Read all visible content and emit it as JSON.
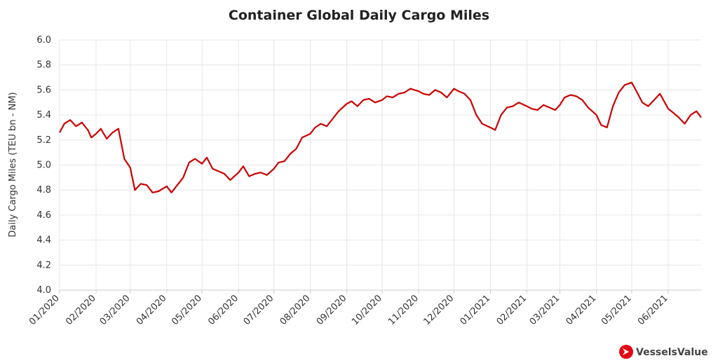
{
  "chart_data": {
    "type": "line",
    "title": "Container Global Daily Cargo Miles",
    "ylabel": "Daily Cargo Miles (TEU bn - NM)",
    "xlabel": "",
    "ylim": [
      4.0,
      6.0
    ],
    "yticks": [
      "4.0",
      "4.2",
      "4.4",
      "4.6",
      "4.8",
      "5.0",
      "5.2",
      "5.4",
      "5.6",
      "5.8",
      "6.0"
    ],
    "x_tick_labels": [
      "01/2020",
      "02/2020",
      "03/2020",
      "04/2020",
      "05/2020",
      "06/2020",
      "07/2020",
      "08/2020",
      "09/2020",
      "10/2020",
      "11/2020",
      "12/2020",
      "01/2021",
      "02/2021",
      "03/2021",
      "04/2021",
      "05/2021",
      "06/2021"
    ],
    "grid": true,
    "legend": "none",
    "line_color": "#cc0000",
    "series": [
      {
        "x": [
          "2020-01-01",
          "2020-01-05",
          "2020-01-10",
          "2020-01-15",
          "2020-01-20",
          "2020-01-25",
          "2020-01-28",
          "2020-02-01",
          "2020-02-05",
          "2020-02-10",
          "2020-02-15",
          "2020-02-20",
          "2020-02-25",
          "2020-03-01",
          "2020-03-05",
          "2020-03-10",
          "2020-03-15",
          "2020-03-20",
          "2020-03-25",
          "2020-04-01",
          "2020-04-05",
          "2020-04-10",
          "2020-04-15",
          "2020-04-20",
          "2020-04-25",
          "2020-05-01",
          "2020-05-05",
          "2020-05-10",
          "2020-05-15",
          "2020-05-20",
          "2020-05-25",
          "2020-06-01",
          "2020-06-05",
          "2020-06-10",
          "2020-06-15",
          "2020-06-20",
          "2020-06-25",
          "2020-07-01",
          "2020-07-05",
          "2020-07-10",
          "2020-07-15",
          "2020-07-20",
          "2020-07-25",
          "2020-08-01",
          "2020-08-05",
          "2020-08-10",
          "2020-08-15",
          "2020-08-20",
          "2020-08-25",
          "2020-09-01",
          "2020-09-05",
          "2020-09-10",
          "2020-09-15",
          "2020-09-20",
          "2020-09-25",
          "2020-10-01",
          "2020-10-05",
          "2020-10-10",
          "2020-10-15",
          "2020-10-20",
          "2020-10-25",
          "2020-11-01",
          "2020-11-05",
          "2020-11-10",
          "2020-11-15",
          "2020-11-20",
          "2020-11-25",
          "2020-12-01",
          "2020-12-05",
          "2020-12-10",
          "2020-12-15",
          "2020-12-20",
          "2020-12-25",
          "2021-01-01",
          "2021-01-05",
          "2021-01-10",
          "2021-01-15",
          "2021-01-20",
          "2021-01-25",
          "2021-02-01",
          "2021-02-05",
          "2021-02-10",
          "2021-02-15",
          "2021-02-20",
          "2021-02-25",
          "2021-03-01",
          "2021-03-05",
          "2021-03-10",
          "2021-03-15",
          "2021-03-20",
          "2021-03-25",
          "2021-04-01",
          "2021-04-05",
          "2021-04-10",
          "2021-04-15",
          "2021-04-20",
          "2021-04-25",
          "2021-05-01",
          "2021-05-05",
          "2021-05-10",
          "2021-05-15",
          "2021-05-20",
          "2021-05-25",
          "2021-06-01",
          "2021-06-05",
          "2021-06-10",
          "2021-06-15",
          "2021-06-20",
          "2021-06-25",
          "2021-06-29"
        ],
        "values": [
          5.26,
          5.33,
          5.36,
          5.31,
          5.34,
          5.28,
          5.22,
          5.25,
          5.29,
          5.21,
          5.26,
          5.29,
          5.05,
          4.98,
          4.8,
          4.85,
          4.84,
          4.78,
          4.79,
          4.83,
          4.78,
          4.84,
          4.9,
          5.02,
          5.05,
          5.01,
          5.06,
          4.97,
          4.95,
          4.93,
          4.88,
          4.94,
          4.99,
          4.91,
          4.93,
          4.94,
          4.92,
          4.97,
          5.02,
          5.03,
          5.09,
          5.13,
          5.22,
          5.25,
          5.3,
          5.33,
          5.31,
          5.37,
          5.43,
          5.49,
          5.51,
          5.47,
          5.52,
          5.53,
          5.5,
          5.52,
          5.55,
          5.54,
          5.57,
          5.58,
          5.61,
          5.59,
          5.57,
          5.56,
          5.6,
          5.58,
          5.54,
          5.61,
          5.59,
          5.57,
          5.52,
          5.4,
          5.33,
          5.3,
          5.28,
          5.4,
          5.46,
          5.47,
          5.5,
          5.47,
          5.45,
          5.44,
          5.48,
          5.46,
          5.44,
          5.48,
          5.54,
          5.56,
          5.55,
          5.52,
          5.46,
          5.4,
          5.32,
          5.3,
          5.47,
          5.58,
          5.64,
          5.66,
          5.59,
          5.5,
          5.47,
          5.52,
          5.57,
          5.45,
          5.42,
          5.38,
          5.33,
          5.4,
          5.43,
          5.38
        ]
      }
    ]
  },
  "branding": {
    "logo_text": "VesselsValue",
    "logo_color": "#e30613"
  }
}
